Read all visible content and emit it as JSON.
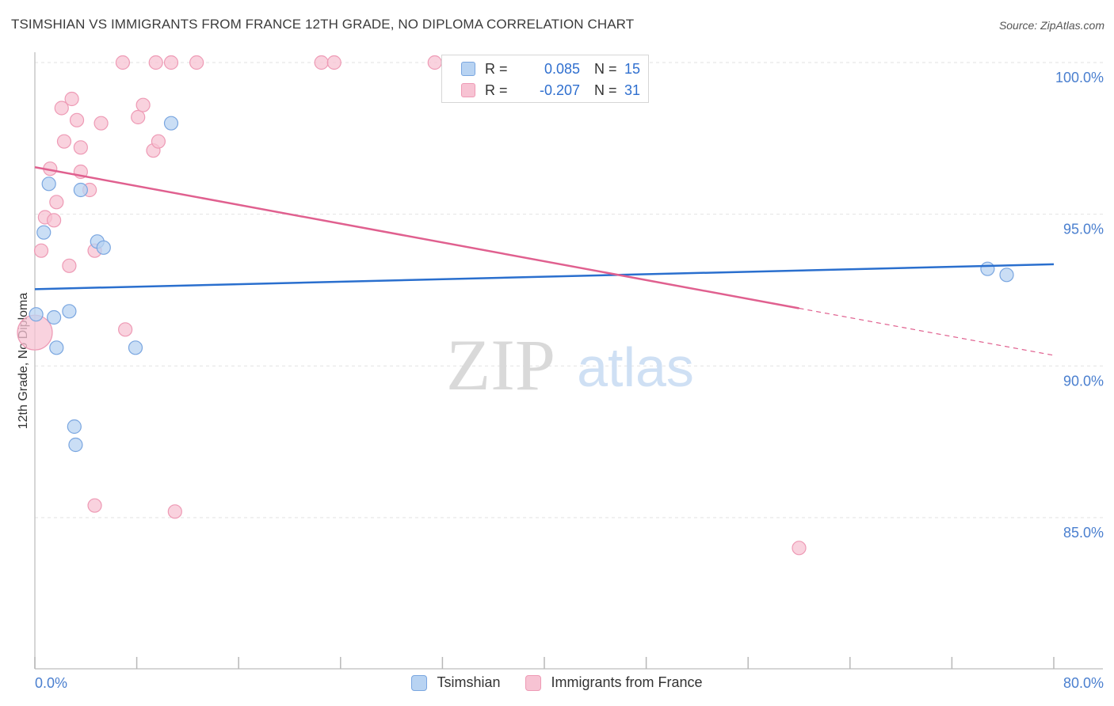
{
  "header": {
    "title": "TSIMSHIAN VS IMMIGRANTS FROM FRANCE 12TH GRADE, NO DIPLOMA CORRELATION CHART",
    "source": "Source: ZipAtlas.com"
  },
  "watermark": {
    "zip": "ZIP",
    "atlas": "atlas"
  },
  "legend": {
    "rows": [
      {
        "r_label": "R =",
        "r_value": "0.085",
        "n_label": "N =",
        "n_value": "15"
      },
      {
        "r_label": "R =",
        "r_value": "-0.207",
        "n_label": "N =",
        "n_value": "31"
      }
    ]
  },
  "bottom_legend": {
    "series1": "Tsimshian",
    "series2": "Immigrants from France"
  },
  "colors": {
    "series1_fill": "#b8d3f2",
    "series1_stroke": "#7aa6e0",
    "series1_line": "#2a6fce",
    "series2_fill": "#f7c3d3",
    "series2_stroke": "#ee9ab5",
    "series2_line": "#e0608f",
    "tick_text": "#4a7fcf",
    "grid": "#e2e2e2"
  },
  "chart_data": {
    "type": "scatter",
    "title": "TSIMSHIAN VS IMMIGRANTS FROM FRANCE 12TH GRADE, NO DIPLOMA CORRELATION CHART",
    "xlabel": "",
    "ylabel": "12th Grade, No Diploma",
    "xlim": [
      0,
      80
    ],
    "ylim": [
      80.5,
      100.5
    ],
    "x_tick_labels": [
      "0.0%",
      "80.0%"
    ],
    "y_ticks": [
      {
        "value": 100,
        "label": "100.0%"
      },
      {
        "value": 95,
        "label": "95.0%"
      },
      {
        "value": 90,
        "label": "90.0%"
      },
      {
        "value": 85,
        "label": "85.0%"
      }
    ],
    "grid": "horizontal dashed",
    "legend_position": "top-center",
    "series": [
      {
        "name": "Tsimshian",
        "r": 0.085,
        "n": 15,
        "points": [
          [
            0.1,
            91.7
          ],
          [
            1.1,
            96.0
          ],
          [
            0.7,
            94.4
          ],
          [
            1.5,
            91.6
          ],
          [
            1.7,
            90.6
          ],
          [
            2.7,
            91.8
          ],
          [
            3.1,
            88.0
          ],
          [
            3.2,
            87.4
          ],
          [
            3.6,
            95.8
          ],
          [
            4.9,
            94.1
          ],
          [
            5.4,
            93.9
          ],
          [
            7.9,
            90.6
          ],
          [
            10.7,
            98.0
          ],
          [
            74.8,
            93.2
          ],
          [
            76.3,
            93.0
          ]
        ],
        "trend": {
          "x": [
            0,
            80
          ],
          "y": [
            92.53,
            93.35
          ]
        }
      },
      {
        "name": "Immigrants from France",
        "r": -0.207,
        "n": 31,
        "points": [
          [
            0.0,
            91.1
          ],
          [
            0.5,
            93.8
          ],
          [
            0.8,
            94.9
          ],
          [
            1.2,
            96.5
          ],
          [
            1.5,
            94.8
          ],
          [
            1.7,
            95.4
          ],
          [
            2.1,
            98.5
          ],
          [
            2.3,
            97.4
          ],
          [
            2.7,
            93.3
          ],
          [
            2.9,
            98.8
          ],
          [
            3.3,
            98.1
          ],
          [
            3.6,
            97.2
          ],
          [
            3.6,
            96.4
          ],
          [
            4.3,
            95.8
          ],
          [
            4.7,
            85.4
          ],
          [
            4.7,
            93.8
          ],
          [
            5.2,
            98.0
          ],
          [
            6.9,
            100.0
          ],
          [
            7.1,
            91.2
          ],
          [
            8.1,
            98.2
          ],
          [
            8.5,
            98.6
          ],
          [
            9.3,
            97.1
          ],
          [
            9.5,
            100.0
          ],
          [
            9.7,
            97.4
          ],
          [
            10.7,
            100.0
          ],
          [
            11.0,
            85.2
          ],
          [
            12.7,
            100.0
          ],
          [
            22.5,
            100.0
          ],
          [
            23.5,
            100.0
          ],
          [
            31.4,
            100.0
          ],
          [
            60.0,
            84.0
          ]
        ],
        "trend": {
          "x": [
            0,
            60
          ],
          "y": [
            96.55,
            91.9
          ]
        },
        "trend_extension": {
          "x": [
            60,
            80
          ],
          "y": [
            91.9,
            90.35
          ]
        }
      }
    ]
  }
}
